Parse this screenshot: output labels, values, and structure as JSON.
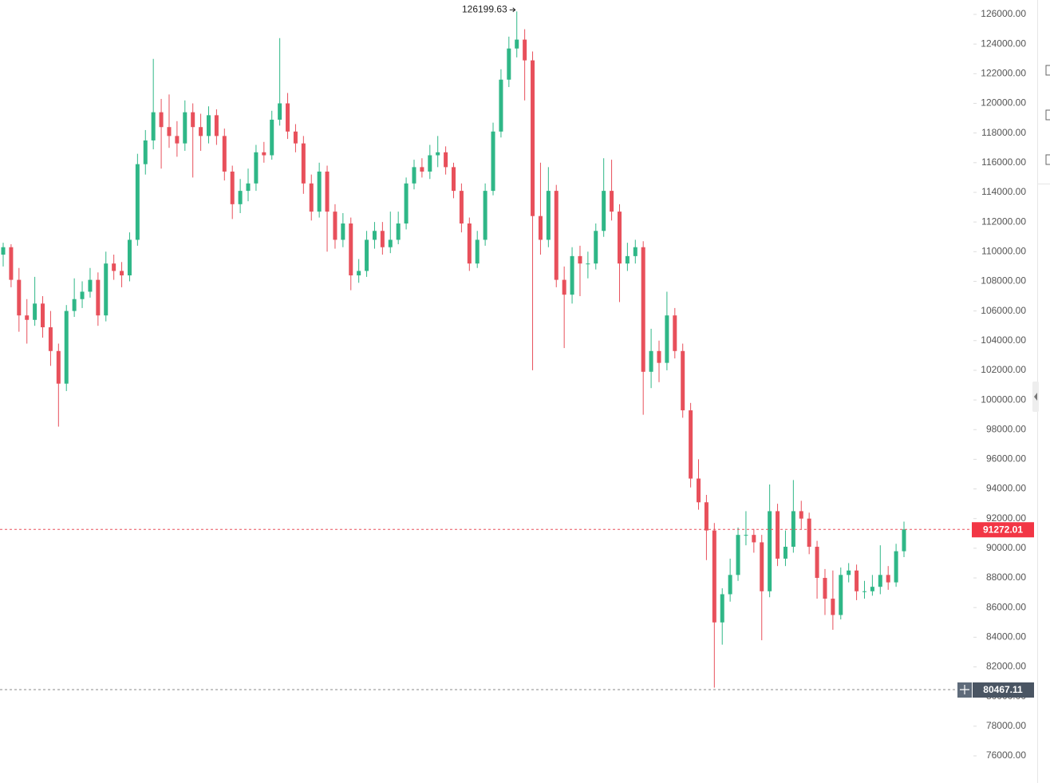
{
  "chart_data": {
    "type": "candlestick",
    "up_color": "#2fb787",
    "down_color": "#e8505b",
    "ylim": [
      74170,
      126970
    ],
    "yticks": [
      {
        "value": 76000,
        "label": "76000.00"
      },
      {
        "value": 78000,
        "label": "78000.00"
      },
      {
        "value": 80000,
        "label": "80000.00"
      },
      {
        "value": 82000,
        "label": "82000.00"
      },
      {
        "value": 84000,
        "label": "84000.00"
      },
      {
        "value": 86000,
        "label": "86000.00"
      },
      {
        "value": 88000,
        "label": "88000.00"
      },
      {
        "value": 90000,
        "label": "90000.00"
      },
      {
        "value": 92000,
        "label": "92000.00"
      },
      {
        "value": 94000,
        "label": "94000.00"
      },
      {
        "value": 96000,
        "label": "96000.00"
      },
      {
        "value": 98000,
        "label": "98000.00"
      },
      {
        "value": 100000,
        "label": "100000.00"
      },
      {
        "value": 102000,
        "label": "102000.00"
      },
      {
        "value": 104000,
        "label": "104000.00"
      },
      {
        "value": 106000,
        "label": "106000.00"
      },
      {
        "value": 108000,
        "label": "108000.00"
      },
      {
        "value": 110000,
        "label": "110000.00"
      },
      {
        "value": 112000,
        "label": "112000.00"
      },
      {
        "value": 114000,
        "label": "114000.00"
      },
      {
        "value": 116000,
        "label": "116000.00"
      },
      {
        "value": 118000,
        "label": "118000.00"
      },
      {
        "value": 120000,
        "label": "120000.00"
      },
      {
        "value": 122000,
        "label": "122000.00"
      },
      {
        "value": 124000,
        "label": "124000.00"
      },
      {
        "value": 126000,
        "label": "126000.00"
      }
    ],
    "open": [
      109800,
      110300,
      108100,
      105700,
      105400,
      106500,
      104900,
      103300,
      101100,
      106000,
      106800,
      107300,
      108100,
      105700,
      109200,
      108700,
      108400,
      110800,
      115900,
      117500,
      119400,
      118400,
      117800,
      117300,
      119400,
      118400,
      117800,
      119200,
      117800,
      115400,
      113200,
      114100,
      114600,
      116700,
      116500,
      118900,
      120000,
      118100,
      117300,
      114600,
      112700,
      115400,
      112700,
      110800,
      111900,
      108400,
      108700,
      110800,
      111400,
      110300,
      110800,
      111900,
      114600,
      115700,
      115400,
      116500,
      116700,
      115700,
      114100,
      111900,
      109200,
      110800,
      114100,
      118100,
      121600,
      123700,
      124300,
      122900,
      112400,
      110800,
      114100,
      108100,
      107100,
      109700,
      109200,
      109200,
      111400,
      114100,
      112700,
      109200,
      109700,
      110300,
      101900,
      103300,
      102500,
      105700,
      103300,
      99300,
      94700,
      93100,
      91200,
      85000,
      86900,
      88200,
      90900,
      90900,
      90400,
      87100,
      92500,
      89300,
      90100,
      92500,
      92000,
      90100,
      88000,
      86600,
      85500,
      88200,
      88500,
      87100,
      87100,
      87400,
      88200,
      87700,
      89800
    ],
    "high": [
      110600,
      110500,
      108900,
      106800,
      108300,
      107000,
      106000,
      103800,
      106400,
      108200,
      108000,
      108900,
      108600,
      110000,
      109800,
      109300,
      111300,
      116600,
      118200,
      123000,
      120300,
      120600,
      118800,
      120200,
      120000,
      119300,
      119800,
      119600,
      118300,
      115800,
      114900,
      115600,
      117200,
      117400,
      119500,
      124400,
      120700,
      118600,
      117800,
      115200,
      116000,
      115800,
      113200,
      112600,
      112300,
      109500,
      111400,
      112000,
      112000,
      112700,
      112700,
      115000,
      116200,
      116300,
      117200,
      117800,
      117100,
      116000,
      114600,
      112300,
      111400,
      114600,
      118700,
      122300,
      124500,
      126199.63,
      125000,
      123500,
      116000,
      115700,
      114500,
      109000,
      110300,
      110400,
      110000,
      111900,
      116300,
      116200,
      113200,
      110600,
      110800,
      110700,
      104800,
      104000,
      107300,
      106200,
      103800,
      99800,
      96000,
      93600,
      91700,
      87300,
      89300,
      91400,
      92500,
      91300,
      90900,
      94300,
      93000,
      91200,
      94600,
      93200,
      92400,
      90500,
      88600,
      88500,
      88700,
      89000,
      88900,
      87800,
      88200,
      90200,
      88800,
      90300,
      91800
    ],
    "low": [
      109000,
      107600,
      104600,
      103800,
      105000,
      104200,
      102300,
      98200,
      100600,
      105600,
      106200,
      106900,
      105000,
      105300,
      108100,
      107600,
      108000,
      110400,
      115200,
      116900,
      115600,
      117000,
      116400,
      116800,
      115000,
      116800,
      117300,
      117200,
      114800,
      112200,
      112600,
      113400,
      114100,
      116000,
      116200,
      118500,
      117600,
      116700,
      113900,
      112100,
      112300,
      110000,
      110200,
      110300,
      107400,
      107900,
      108300,
      110200,
      109800,
      109900,
      110500,
      111500,
      114200,
      115000,
      114900,
      115700,
      115200,
      113600,
      111300,
      108700,
      108900,
      110400,
      113800,
      117700,
      121100,
      123100,
      120200,
      102000,
      109800,
      110300,
      107600,
      103500,
      106500,
      107000,
      108200,
      108800,
      111000,
      112100,
      106600,
      108700,
      109200,
      99000,
      100800,
      101200,
      102000,
      102800,
      98800,
      94100,
      92600,
      89200,
      80600,
      83500,
      86400,
      87800,
      90200,
      89700,
      83800,
      86700,
      88800,
      88800,
      89700,
      91300,
      89600,
      86600,
      85500,
      84500,
      85200,
      87700,
      86500,
      86600,
      86800,
      86900,
      87200,
      87400,
      89400
    ],
    "close": [
      110300,
      108100,
      105700,
      105400,
      106500,
      104900,
      103300,
      101100,
      106000,
      106800,
      107300,
      108100,
      105700,
      109200,
      108700,
      108400,
      110800,
      115900,
      117500,
      119400,
      118400,
      117800,
      117300,
      119400,
      118400,
      117800,
      119200,
      117800,
      115400,
      113200,
      114100,
      114600,
      116700,
      116500,
      118900,
      120000,
      118100,
      117300,
      114600,
      112700,
      115400,
      112700,
      110800,
      111900,
      108400,
      108700,
      110800,
      111400,
      110300,
      110800,
      111900,
      114600,
      115700,
      115400,
      116500,
      116700,
      115700,
      114100,
      111900,
      109200,
      110800,
      114100,
      118100,
      121600,
      123700,
      124300,
      122900,
      112400,
      110800,
      114100,
      108100,
      107100,
      109700,
      109200,
      109200,
      111400,
      114100,
      112700,
      109200,
      109700,
      110300,
      101900,
      103300,
      102500,
      105700,
      103300,
      99300,
      94700,
      93100,
      91200,
      85000,
      86900,
      88200,
      90900,
      90900,
      90400,
      87100,
      92500,
      89300,
      90100,
      92500,
      92000,
      90100,
      88000,
      86600,
      85500,
      88200,
      88500,
      87100,
      87100,
      87400,
      88200,
      87700,
      89800,
      91272.01
    ],
    "crosshair_price": 80467.11
  }
}
